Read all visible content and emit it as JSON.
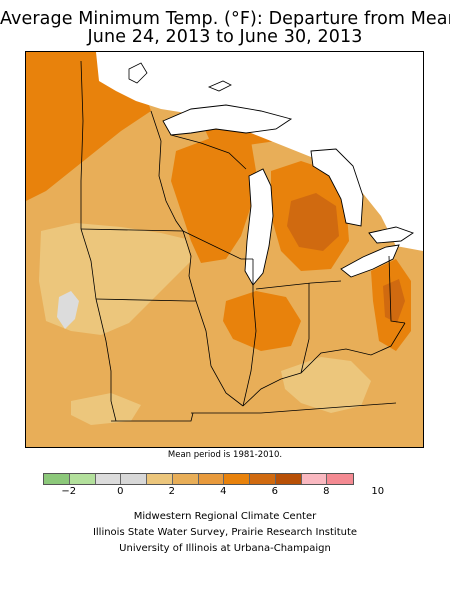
{
  "title": {
    "line1": "Average Minimum Temp. (°F): Departure from Mean",
    "line2": "June 24, 2013 to June 30, 2013"
  },
  "map_note": "Mean period is 1981-2010.",
  "legend": {
    "colors": [
      "#8cc87a",
      "#b3e09c",
      "#dcdcdc",
      "#d8d8d8",
      "#ecc67c",
      "#e8ae58",
      "#e89a3c",
      "#e8820c",
      "#d06a10",
      "#b85006",
      "#f9b8c0",
      "#f48a92"
    ],
    "tick_labels": [
      "−2",
      "0",
      "2",
      "4",
      "6",
      "8",
      "10"
    ]
  },
  "map": {
    "region": "Midwest United States",
    "fill_colors": {
      "2_to_3": "#ecc67c",
      "3_to_4": "#e8ae58",
      "4_to_5": "#e89a3c",
      "5_to_6": "#e8820c",
      "6_to_7": "#d06a10",
      "neg1_to_1": "#dcdcdc",
      "water": "#ffffff"
    }
  },
  "credits": {
    "line1": "Midwestern Regional Climate Center",
    "line2": "Illinois State Water Survey, Prairie Research Institute",
    "line3": "University of Illinois at Urbana-Champaign"
  }
}
